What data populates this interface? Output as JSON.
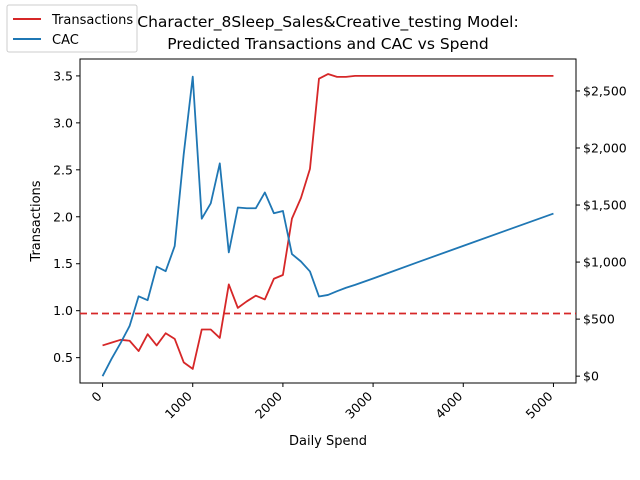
{
  "chart_data": {
    "type": "line",
    "title_line1": "Character_8Sleep_Sales&Creative_testing Model:",
    "title_line2": "Predicted Transactions and CAC vs Spend",
    "xlabel": "Daily Spend",
    "ylabel_left": "Transactions",
    "xlim": [
      -250,
      5250
    ],
    "ylim_left": [
      0.23,
      3.68
    ],
    "ylim_right": [
      -60,
      2780
    ],
    "x_ticks": [
      0,
      1000,
      2000,
      3000,
      4000,
      5000
    ],
    "x_tick_labels": [
      "0",
      "1000",
      "2000",
      "3000",
      "4000",
      "5000"
    ],
    "y_left_ticks": [
      0.5,
      1.0,
      1.5,
      2.0,
      2.5,
      3.0,
      3.5
    ],
    "y_left_tick_labels": [
      "0.5",
      "1.0",
      "1.5",
      "2.0",
      "2.5",
      "3.0",
      "3.5"
    ],
    "y_right_ticks": [
      0,
      500,
      1000,
      1500,
      2000,
      2500
    ],
    "y_right_tick_labels": [
      "$0",
      "$500",
      "$1,000",
      "$1,500",
      "$2,000",
      "$2,500"
    ],
    "reference_line": {
      "axis": "left",
      "y": 0.97,
      "color": "#d62728",
      "style": "dashed"
    },
    "legend_position": "top-left",
    "series": [
      {
        "name": "Transactions",
        "axis": "left",
        "color": "#d62728",
        "x": [
          0,
          100,
          200,
          300,
          400,
          500,
          600,
          700,
          800,
          900,
          1000,
          1100,
          1200,
          1300,
          1400,
          1500,
          1600,
          1700,
          1800,
          1900,
          2000,
          2100,
          2200,
          2300,
          2400,
          2500,
          2600,
          2700,
          2800,
          2900,
          3000,
          3500,
          4000,
          4500,
          5000
        ],
        "values": [
          0.63,
          0.66,
          0.69,
          0.68,
          0.57,
          0.75,
          0.63,
          0.76,
          0.7,
          0.45,
          0.38,
          0.8,
          0.8,
          0.71,
          1.28,
          1.03,
          1.1,
          1.16,
          1.12,
          1.34,
          1.38,
          1.98,
          2.2,
          2.51,
          3.47,
          3.52,
          3.49,
          3.49,
          3.5,
          3.5,
          3.5,
          3.5,
          3.5,
          3.5,
          3.5
        ]
      },
      {
        "name": "CAC",
        "axis": "right",
        "color": "#1f77b4",
        "x": [
          0,
          100,
          200,
          300,
          400,
          500,
          600,
          700,
          800,
          900,
          1000,
          1100,
          1200,
          1300,
          1400,
          1500,
          1600,
          1700,
          1800,
          1900,
          2000,
          2100,
          2200,
          2300,
          2400,
          2500,
          2600,
          2700,
          2800,
          3000,
          3500,
          4000,
          4500,
          5000
        ],
        "values": [
          0,
          152,
          290,
          440,
          700,
          666,
          960,
          920,
          1140,
          1945,
          2625,
          1380,
          1515,
          1865,
          1085,
          1478,
          1472,
          1472,
          1610,
          1428,
          1448,
          1070,
          1005,
          918,
          698,
          712,
          745,
          775,
          800,
          856,
          1000,
          1142,
          1284,
          1425
        ]
      }
    ]
  }
}
